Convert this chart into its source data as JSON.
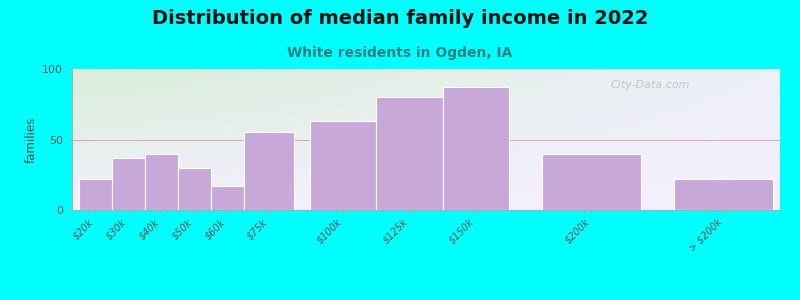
{
  "title": "Distribution of median family income in 2022",
  "subtitle": "White residents in Ogden, IA",
  "ylabel": "families",
  "bar_labels": [
    "$20k",
    "$30k",
    "$40k",
    "$50k",
    "$60k",
    "$75k",
    "$100k",
    "$125k",
    "$150k",
    "$200k",
    "> $200k"
  ],
  "bar_values": [
    22,
    37,
    40,
    30,
    17,
    55,
    63,
    80,
    87,
    40,
    22
  ],
  "bar_color": "#C8A8D8",
  "bar_edgecolor": "#FFFFFF",
  "background_outer": "#00FFFF",
  "background_plot_top_left": "#D8EED8",
  "background_plot_top_right": "#EEF0F8",
  "background_plot_bottom": "#F5F0FF",
  "ylim": [
    0,
    100
  ],
  "yticks": [
    0,
    50,
    100
  ],
  "watermark": "City-Data.com",
  "title_fontsize": 14,
  "subtitle_fontsize": 10,
  "subtitle_color": "#2A8080",
  "grid_color": "#D8A8A8",
  "grid_linewidth": 0.7,
  "bar_positions": [
    0,
    1,
    2,
    3,
    4,
    5,
    7,
    9,
    11,
    14,
    18
  ],
  "bar_widths": [
    1,
    1,
    1,
    1,
    1,
    1.5,
    2,
    2,
    2,
    3,
    3
  ]
}
